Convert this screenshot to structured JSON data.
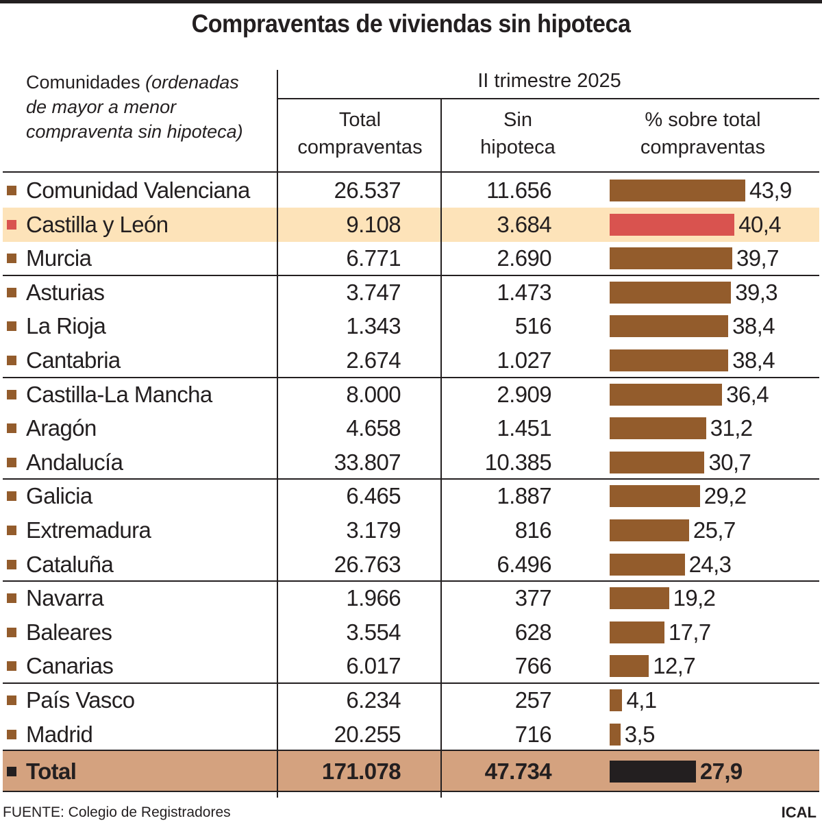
{
  "title": "Compraventas de viviendas sin hipoteca",
  "header": {
    "communities_label": "Comunidades",
    "communities_note": "(ordenadas de mayor a menor compraventa sin hipoteca)",
    "period": "II trimestre 2025",
    "col_total_line1": "Total",
    "col_total_line2": "compraventas",
    "col_sin_line1": "Sin",
    "col_sin_line2": "hipoteca",
    "col_pct_line1": "% sobre total",
    "col_pct_line2": "compraventas"
  },
  "colors": {
    "bar": "#935c2c",
    "highlight_bar": "#d9534f",
    "highlight_row": "#fde3b9",
    "total_row": "#d4a27f",
    "total_bar": "#231f20"
  },
  "chart_data": {
    "type": "table",
    "columns": [
      "Comunidades",
      "Total compraventas",
      "Sin hipoteca",
      "% sobre total compraventas"
    ],
    "rows": [
      {
        "name": "Comunidad Valenciana",
        "total": "26.537",
        "sin": "11.656",
        "pct": 43.9,
        "pct_label": "43,9"
      },
      {
        "name": "Castilla y León",
        "total": "9.108",
        "sin": "3.684",
        "pct": 40.4,
        "pct_label": "40,4",
        "highlight": true
      },
      {
        "name": "Murcia",
        "total": "6.771",
        "sin": "2.690",
        "pct": 39.7,
        "pct_label": "39,7"
      },
      {
        "name": "Asturias",
        "total": "3.747",
        "sin": "1.473",
        "pct": 39.3,
        "pct_label": "39,3"
      },
      {
        "name": "La Rioja",
        "total": "1.343",
        "sin": "516",
        "pct": 38.4,
        "pct_label": "38,4"
      },
      {
        "name": "Cantabria",
        "total": "2.674",
        "sin": "1.027",
        "pct": 38.4,
        "pct_label": "38,4"
      },
      {
        "name": "Castilla-La Mancha",
        "total": "8.000",
        "sin": "2.909",
        "pct": 36.4,
        "pct_label": "36,4"
      },
      {
        "name": "Aragón",
        "total": "4.658",
        "sin": "1.451",
        "pct": 31.2,
        "pct_label": "31,2"
      },
      {
        "name": "Andalucía",
        "total": "33.807",
        "sin": "10.385",
        "pct": 30.7,
        "pct_label": "30,7"
      },
      {
        "name": "Galicia",
        "total": "6.465",
        "sin": "1.887",
        "pct": 29.2,
        "pct_label": "29,2"
      },
      {
        "name": "Extremadura",
        "total": "3.179",
        "sin": "816",
        "pct": 25.7,
        "pct_label": "25,7"
      },
      {
        "name": "Cataluña",
        "total": "26.763",
        "sin": "6.496",
        "pct": 24.3,
        "pct_label": "24,3"
      },
      {
        "name": "Navarra",
        "total": "1.966",
        "sin": "377",
        "pct": 19.2,
        "pct_label": "19,2"
      },
      {
        "name": "Baleares",
        "total": "3.554",
        "sin": "628",
        "pct": 17.7,
        "pct_label": "17,7"
      },
      {
        "name": "Canarias",
        "total": "6.017",
        "sin": "766",
        "pct": 12.7,
        "pct_label": "12,7"
      },
      {
        "name": "País Vasco",
        "total": "6.234",
        "sin": "257",
        "pct": 4.1,
        "pct_label": "4,1"
      },
      {
        "name": "Madrid",
        "total": "20.255",
        "sin": "716",
        "pct": 3.5,
        "pct_label": "3,5"
      }
    ],
    "total": {
      "name": "Total",
      "total": "171.078",
      "sin": "47.734",
      "pct": 27.9,
      "pct_label": "27,9"
    }
  },
  "footer": {
    "source": "FUENTE: Colegio de Registradores",
    "credit": "ICAL"
  }
}
